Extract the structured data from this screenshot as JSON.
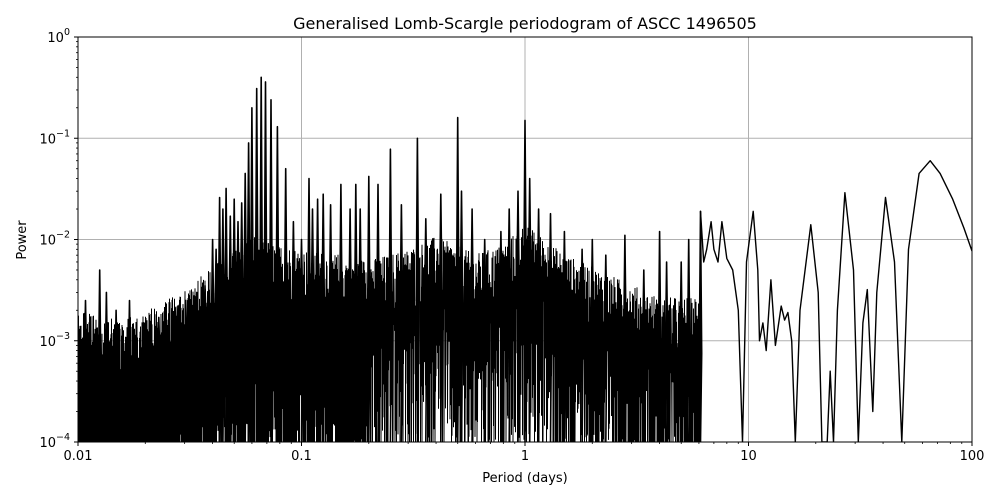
{
  "chart_data": {
    "type": "line",
    "title": "Generalised Lomb-Scargle periodogram of ASCC 1496505",
    "xlabel": "Period (days)",
    "ylabel": "Power",
    "xscale": "log",
    "yscale": "log",
    "xlim": [
      0.01,
      100
    ],
    "ylim": [
      0.0001,
      1
    ],
    "grid": true,
    "legend": null,
    "x_ticks": [
      {
        "value": 0.01,
        "label": "0.01"
      },
      {
        "value": 0.1,
        "label": "0.1"
      },
      {
        "value": 1,
        "label": "1"
      },
      {
        "value": 10,
        "label": "10"
      },
      {
        "value": 100,
        "label": "100"
      }
    ],
    "y_ticks": [
      {
        "value": 0.0001,
        "base": "10",
        "exp": "−4"
      },
      {
        "value": 0.001,
        "base": "10",
        "exp": "−3"
      },
      {
        "value": 0.01,
        "base": "10",
        "exp": "−2"
      },
      {
        "value": 0.1,
        "base": "10",
        "exp": "−1"
      },
      {
        "value": 1,
        "base": "10",
        "exp": "0"
      }
    ],
    "line_color": "#000000",
    "grid_color": "#b0b0b0",
    "noise_floor": [
      {
        "period": 0.01,
        "power": 0.0011
      },
      {
        "period": 0.013,
        "power": 0.001
      },
      {
        "period": 0.016,
        "power": 0.0009
      },
      {
        "period": 0.02,
        "power": 0.0011
      },
      {
        "period": 0.025,
        "power": 0.0014
      },
      {
        "period": 0.03,
        "power": 0.0018
      },
      {
        "period": 0.04,
        "power": 0.003
      },
      {
        "period": 0.05,
        "power": 0.0045
      },
      {
        "period": 0.06,
        "power": 0.006
      },
      {
        "period": 0.08,
        "power": 0.005
      },
      {
        "period": 0.1,
        "power": 0.0045
      },
      {
        "period": 0.15,
        "power": 0.004
      },
      {
        "period": 0.2,
        "power": 0.0035
      },
      {
        "period": 0.3,
        "power": 0.0045
      },
      {
        "period": 0.4,
        "power": 0.006
      },
      {
        "period": 0.6,
        "power": 0.004
      },
      {
        "period": 0.8,
        "power": 0.005
      },
      {
        "period": 1.0,
        "power": 0.008
      },
      {
        "period": 1.5,
        "power": 0.004
      },
      {
        "period": 2.0,
        "power": 0.003
      },
      {
        "period": 3.0,
        "power": 0.002
      },
      {
        "period": 4.0,
        "power": 0.0015
      }
    ],
    "peaks": [
      {
        "period": 0.0108,
        "power": 0.0025
      },
      {
        "period": 0.0125,
        "power": 0.005
      },
      {
        "period": 0.0134,
        "power": 0.003
      },
      {
        "period": 0.0148,
        "power": 0.002
      },
      {
        "period": 0.017,
        "power": 0.0025
      },
      {
        "period": 0.023,
        "power": 0.0017
      },
      {
        "period": 0.028,
        "power": 0.0022
      },
      {
        "period": 0.031,
        "power": 0.0025
      },
      {
        "period": 0.034,
        "power": 0.003
      },
      {
        "period": 0.037,
        "power": 0.0035
      },
      {
        "period": 0.04,
        "power": 0.01
      },
      {
        "period": 0.0415,
        "power": 0.008
      },
      {
        "period": 0.043,
        "power": 0.026
      },
      {
        "period": 0.0445,
        "power": 0.02
      },
      {
        "period": 0.046,
        "power": 0.032
      },
      {
        "period": 0.048,
        "power": 0.017
      },
      {
        "period": 0.05,
        "power": 0.025
      },
      {
        "period": 0.052,
        "power": 0.015
      },
      {
        "period": 0.054,
        "power": 0.023
      },
      {
        "period": 0.056,
        "power": 0.045
      },
      {
        "period": 0.058,
        "power": 0.09
      },
      {
        "period": 0.06,
        "power": 0.2
      },
      {
        "period": 0.063,
        "power": 0.31
      },
      {
        "period": 0.066,
        "power": 0.4
      },
      {
        "period": 0.069,
        "power": 0.36
      },
      {
        "period": 0.073,
        "power": 0.24
      },
      {
        "period": 0.078,
        "power": 0.13
      },
      {
        "period": 0.085,
        "power": 0.05
      },
      {
        "period": 0.092,
        "power": 0.015
      },
      {
        "period": 0.1,
        "power": 0.01
      },
      {
        "period": 0.108,
        "power": 0.04
      },
      {
        "period": 0.112,
        "power": 0.02
      },
      {
        "period": 0.118,
        "power": 0.025
      },
      {
        "period": 0.125,
        "power": 0.028
      },
      {
        "period": 0.135,
        "power": 0.022
      },
      {
        "period": 0.15,
        "power": 0.035
      },
      {
        "period": 0.165,
        "power": 0.02
      },
      {
        "period": 0.175,
        "power": 0.035
      },
      {
        "period": 0.183,
        "power": 0.02
      },
      {
        "period": 0.2,
        "power": 0.042
      },
      {
        "period": 0.22,
        "power": 0.035
      },
      {
        "period": 0.25,
        "power": 0.078
      },
      {
        "period": 0.28,
        "power": 0.022
      },
      {
        "period": 0.33,
        "power": 0.1
      },
      {
        "period": 0.36,
        "power": 0.016
      },
      {
        "period": 0.42,
        "power": 0.028
      },
      {
        "period": 0.5,
        "power": 0.16
      },
      {
        "period": 0.52,
        "power": 0.03
      },
      {
        "period": 0.58,
        "power": 0.02
      },
      {
        "period": 0.66,
        "power": 0.01
      },
      {
        "period": 0.78,
        "power": 0.012
      },
      {
        "period": 0.85,
        "power": 0.02
      },
      {
        "period": 0.93,
        "power": 0.03
      },
      {
        "period": 1.0,
        "power": 0.15
      },
      {
        "period": 1.05,
        "power": 0.04
      },
      {
        "period": 1.15,
        "power": 0.02
      },
      {
        "period": 1.3,
        "power": 0.018
      },
      {
        "period": 1.5,
        "power": 0.012
      },
      {
        "period": 1.8,
        "power": 0.008
      },
      {
        "period": 2.0,
        "power": 0.01
      },
      {
        "period": 2.3,
        "power": 0.007
      },
      {
        "period": 2.8,
        "power": 0.011
      },
      {
        "period": 3.4,
        "power": 0.005
      },
      {
        "period": 4.0,
        "power": 0.012
      },
      {
        "period": 4.3,
        "power": 0.006
      },
      {
        "period": 5.0,
        "power": 0.006
      },
      {
        "period": 5.4,
        "power": 0.01
      },
      {
        "period": 6.1,
        "power": 0.019
      }
    ],
    "smooth_curve": [
      {
        "period": 6.1,
        "power": 0.019
      },
      {
        "period": 6.3,
        "power": 0.006
      },
      {
        "period": 6.5,
        "power": 0.008
      },
      {
        "period": 6.8,
        "power": 0.015
      },
      {
        "period": 7.0,
        "power": 0.008
      },
      {
        "period": 7.3,
        "power": 0.006
      },
      {
        "period": 7.6,
        "power": 0.015
      },
      {
        "period": 8.0,
        "power": 0.0065
      },
      {
        "period": 8.5,
        "power": 0.005
      },
      {
        "period": 9.0,
        "power": 0.002
      },
      {
        "period": 9.4,
        "power": 0.0001
      },
      {
        "period": 9.8,
        "power": 0.006
      },
      {
        "period": 10.5,
        "power": 0.019
      },
      {
        "period": 11.0,
        "power": 0.005
      },
      {
        "period": 11.2,
        "power": 0.001
      },
      {
        "period": 11.6,
        "power": 0.0015
      },
      {
        "period": 12.0,
        "power": 0.0008
      },
      {
        "period": 12.6,
        "power": 0.004
      },
      {
        "period": 13.2,
        "power": 0.0009
      },
      {
        "period": 14.0,
        "power": 0.0022
      },
      {
        "period": 14.5,
        "power": 0.0016
      },
      {
        "period": 15.0,
        "power": 0.0019
      },
      {
        "period": 15.6,
        "power": 0.001
      },
      {
        "period": 16.2,
        "power": 0.0001
      },
      {
        "period": 17.0,
        "power": 0.002
      },
      {
        "period": 19.0,
        "power": 0.014
      },
      {
        "period": 20.5,
        "power": 0.003
      },
      {
        "period": 21.3,
        "power": 0.0001
      },
      {
        "period": 22.5,
        "power": 0.0001
      },
      {
        "period": 23.2,
        "power": 0.0005
      },
      {
        "period": 24.0,
        "power": 0.0001
      },
      {
        "period": 25.0,
        "power": 0.002
      },
      {
        "period": 27.0,
        "power": 0.029
      },
      {
        "period": 29.5,
        "power": 0.005
      },
      {
        "period": 31.0,
        "power": 0.0001
      },
      {
        "period": 32.5,
        "power": 0.0015
      },
      {
        "period": 34.0,
        "power": 0.0032
      },
      {
        "period": 36.0,
        "power": 0.0002
      },
      {
        "period": 37.5,
        "power": 0.003
      },
      {
        "period": 41.0,
        "power": 0.026
      },
      {
        "period": 45.0,
        "power": 0.006
      },
      {
        "period": 48.5,
        "power": 0.0001
      },
      {
        "period": 52.0,
        "power": 0.008
      },
      {
        "period": 58.0,
        "power": 0.045
      },
      {
        "period": 65.0,
        "power": 0.06
      },
      {
        "period": 72.0,
        "power": 0.045
      },
      {
        "period": 82.0,
        "power": 0.025
      },
      {
        "period": 92.0,
        "power": 0.013
      },
      {
        "period": 100.0,
        "power": 0.0077
      }
    ]
  }
}
